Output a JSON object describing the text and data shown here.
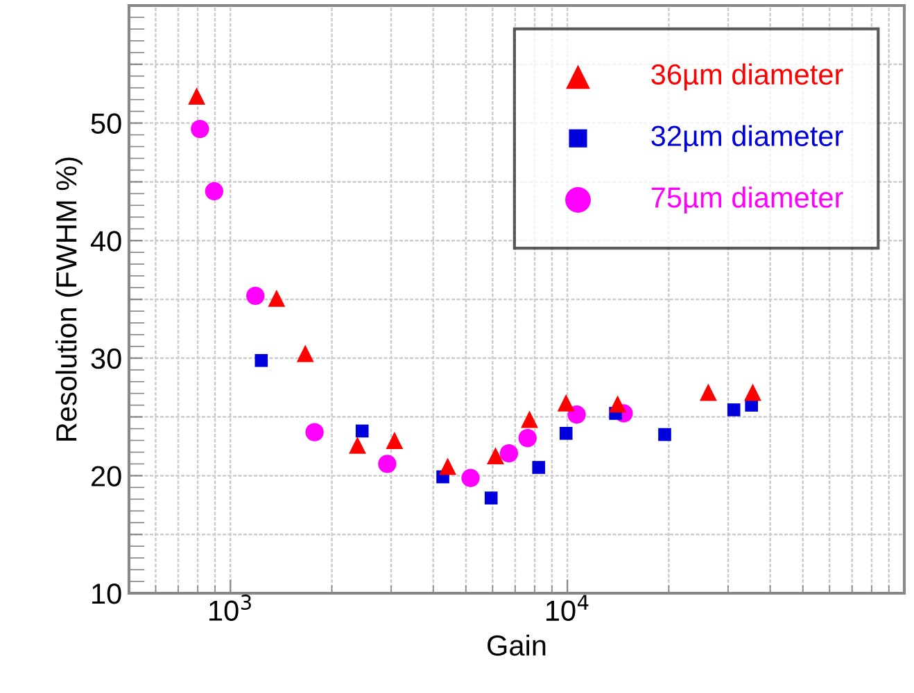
{
  "chart_data": {
    "type": "scatter",
    "xlabel": "Gain",
    "ylabel": "Resolution (FWHM %)",
    "log": "x",
    "xlim": [
      500,
      100000
    ],
    "xticks": [
      {
        "value": 1000,
        "label": "10$^{3}$"
      },
      {
        "value": 10000,
        "label": "10$^{4}$"
      }
    ],
    "ylim": [
      10,
      60
    ],
    "yticks": [
      10,
      {
        "value": 15,
        "label": null
      },
      20,
      {
        "value": 25,
        "label": null
      },
      30,
      {
        "value": 35,
        "label": null
      },
      40,
      {
        "value": 45,
        "label": null
      },
      50,
      {
        "value": 55,
        "label": null
      },
      {
        "value": 60,
        "label": null
      }
    ],
    "grid": true,
    "legend": "top right",
    "series": [
      {
        "name": "36µm diameter",
        "color": "#ff0000",
        "marker": "triangle",
        "x": [
          794,
          1371,
          1668,
          2383,
          3069,
          4414,
          6120,
          7720,
          9910,
          14100,
          26200,
          35500
        ],
        "values": [
          52.3,
          35.1,
          30.4,
          22.6,
          23.0,
          20.8,
          21.7,
          24.8,
          26.2,
          26.1,
          27.1,
          27.1
        ]
      },
      {
        "name": "32µm diameter",
        "color": "#0000dd",
        "marker": "square",
        "x": [
          1235,
          2460,
          4270,
          5940,
          8220,
          9910,
          13900,
          19450,
          31200,
          35200
        ],
        "values": [
          29.8,
          23.8,
          19.9,
          18.1,
          20.7,
          23.6,
          25.3,
          23.5,
          25.6,
          26.0
        ]
      },
      {
        "name": "75µm diameter",
        "color": "#ff00ff",
        "marker": "circle",
        "x": [
          812,
          895,
          1186,
          1777,
          2920,
          5160,
          6710,
          7620,
          10660,
          14700
        ],
        "values": [
          49.5,
          44.2,
          35.3,
          23.7,
          21.0,
          19.8,
          21.9,
          23.2,
          25.2,
          25.3
        ]
      }
    ]
  }
}
